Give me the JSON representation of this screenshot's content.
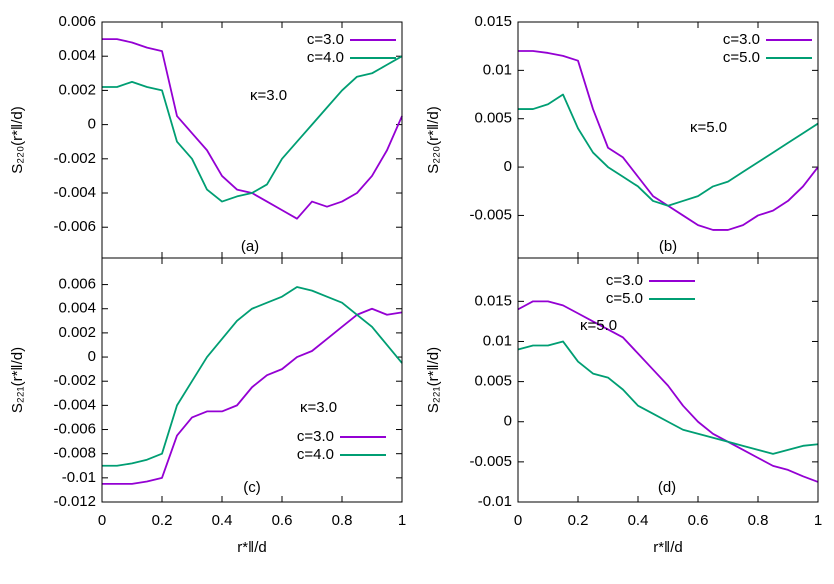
{
  "chart_data": [
    {
      "type": "line",
      "ylabel": "S₂₂₀(r*‖/d)",
      "annotation": "κ=3.0",
      "panel_label": "(a)",
      "legend": "upper right",
      "xlim": [
        0,
        1
      ],
      "ylim": [
        -0.0078,
        0.006
      ],
      "xticks": [
        0,
        0.2,
        0.4,
        0.6,
        0.8,
        1
      ],
      "yticks": [
        -0.006,
        -0.004,
        -0.002,
        0,
        0.002,
        0.004,
        0.006
      ],
      "x": [
        0,
        0.05,
        0.1,
        0.15,
        0.2,
        0.25,
        0.3,
        0.35,
        0.4,
        0.45,
        0.5,
        0.55,
        0.6,
        0.65,
        0.7,
        0.75,
        0.8,
        0.85,
        0.9,
        0.95,
        1
      ],
      "series": [
        {
          "name": "c=3.0",
          "color": "#9400d3",
          "values": [
            0.005,
            0.005,
            0.0048,
            0.0045,
            0.0043,
            0.0005,
            -0.0005,
            -0.0015,
            -0.003,
            -0.0038,
            -0.004,
            -0.0045,
            -0.005,
            -0.0055,
            -0.0045,
            -0.0048,
            -0.0045,
            -0.004,
            -0.003,
            -0.0015,
            0.0005
          ]
        },
        {
          "name": "c=4.0",
          "color": "#009e73",
          "values": [
            0.0022,
            0.0022,
            0.0025,
            0.0022,
            0.002,
            -0.001,
            -0.002,
            -0.0038,
            -0.0045,
            -0.0042,
            -0.004,
            -0.0035,
            -0.002,
            -0.001,
            0,
            0.001,
            0.002,
            0.0028,
            0.003,
            0.0035,
            0.004
          ]
        }
      ]
    },
    {
      "type": "line",
      "ylabel": "S₂₂₀(r*‖/d)",
      "annotation": "κ=5.0",
      "panel_label": "(b)",
      "legend": "upper right",
      "xlim": [
        0,
        1
      ],
      "ylim": [
        -0.0094,
        0.015
      ],
      "xticks": [
        0,
        0.2,
        0.4,
        0.6,
        0.8,
        1
      ],
      "yticks": [
        -0.005,
        0,
        0.005,
        0.01,
        0.015
      ],
      "x": [
        0,
        0.05,
        0.1,
        0.15,
        0.2,
        0.25,
        0.3,
        0.35,
        0.4,
        0.45,
        0.5,
        0.55,
        0.6,
        0.65,
        0.7,
        0.75,
        0.8,
        0.85,
        0.9,
        0.95,
        1
      ],
      "series": [
        {
          "name": "c=3.0",
          "color": "#9400d3",
          "values": [
            0.012,
            0.012,
            0.0118,
            0.0115,
            0.011,
            0.006,
            0.002,
            0.001,
            -0.001,
            -0.003,
            -0.004,
            -0.005,
            -0.006,
            -0.0065,
            -0.0065,
            -0.006,
            -0.005,
            -0.0045,
            -0.0035,
            -0.002,
            0
          ]
        },
        {
          "name": "c=5.0",
          "color": "#009e73",
          "values": [
            0.006,
            0.006,
            0.0065,
            0.0075,
            0.004,
            0.0015,
            0,
            -0.001,
            -0.002,
            -0.0035,
            -0.004,
            -0.0035,
            -0.003,
            -0.002,
            -0.0015,
            -0.0005,
            0.0005,
            0.0015,
            0.0025,
            0.0035,
            0.0045
          ]
        }
      ]
    },
    {
      "type": "line",
      "ylabel": "S₂₂₁(r*‖/d)",
      "xlabel": "r*‖/d",
      "annotation": "κ=3.0",
      "panel_label": "(c)",
      "legend": "lower right",
      "xlim": [
        0,
        1
      ],
      "ylim": [
        -0.012,
        0.0082
      ],
      "xticks": [
        0,
        0.2,
        0.4,
        0.6,
        0.8,
        1
      ],
      "yticks": [
        -0.012,
        -0.01,
        -0.008,
        -0.006,
        -0.004,
        -0.002,
        0,
        0.002,
        0.004,
        0.006
      ],
      "x": [
        0,
        0.05,
        0.1,
        0.15,
        0.2,
        0.25,
        0.3,
        0.35,
        0.4,
        0.45,
        0.5,
        0.55,
        0.6,
        0.65,
        0.7,
        0.75,
        0.8,
        0.85,
        0.9,
        0.95,
        1
      ],
      "series": [
        {
          "name": "c=3.0",
          "color": "#9400d3",
          "values": [
            -0.0105,
            -0.0105,
            -0.0105,
            -0.0103,
            -0.01,
            -0.0065,
            -0.005,
            -0.0045,
            -0.0045,
            -0.004,
            -0.0025,
            -0.0015,
            -0.001,
            0,
            0.0005,
            0.0015,
            0.0025,
            0.0035,
            0.004,
            0.0035,
            0.0037
          ]
        },
        {
          "name": "c=4.0",
          "color": "#009e73",
          "values": [
            -0.009,
            -0.009,
            -0.0088,
            -0.0085,
            -0.008,
            -0.004,
            -0.002,
            0,
            0.0015,
            0.003,
            0.004,
            0.0045,
            0.005,
            0.0058,
            0.0055,
            0.005,
            0.0045,
            0.0035,
            0.0025,
            0.001,
            -0.0005
          ]
        }
      ]
    },
    {
      "type": "line",
      "ylabel": "S₂₂₁(r*‖/d)",
      "xlabel": "r*‖/d",
      "annotation": "κ=5.0",
      "panel_label": "(d)",
      "legend": "upper center",
      "xlim": [
        0,
        1
      ],
      "ylim": [
        -0.01,
        0.0204
      ],
      "xticks": [
        0,
        0.2,
        0.4,
        0.6,
        0.8,
        1
      ],
      "yticks": [
        -0.01,
        -0.005,
        0,
        0.005,
        0.01,
        0.015
      ],
      "x": [
        0,
        0.05,
        0.1,
        0.15,
        0.2,
        0.25,
        0.3,
        0.35,
        0.4,
        0.45,
        0.5,
        0.55,
        0.6,
        0.65,
        0.7,
        0.75,
        0.8,
        0.85,
        0.9,
        0.95,
        1
      ],
      "series": [
        {
          "name": "c=3.0",
          "color": "#9400d3",
          "values": [
            0.014,
            0.015,
            0.015,
            0.0145,
            0.0135,
            0.0125,
            0.0115,
            0.0105,
            0.0085,
            0.0065,
            0.0045,
            0.002,
            0,
            -0.0015,
            -0.0025,
            -0.0035,
            -0.0045,
            -0.0055,
            -0.006,
            -0.0068,
            -0.0075
          ]
        },
        {
          "name": "c=5.0",
          "color": "#009e73",
          "values": [
            0.009,
            0.0095,
            0.0095,
            0.01,
            0.0075,
            0.006,
            0.0055,
            0.004,
            0.002,
            0.001,
            0,
            -0.001,
            -0.0015,
            -0.002,
            -0.0025,
            -0.003,
            -0.0035,
            -0.004,
            -0.0035,
            -0.003,
            -0.0028
          ]
        }
      ]
    }
  ]
}
